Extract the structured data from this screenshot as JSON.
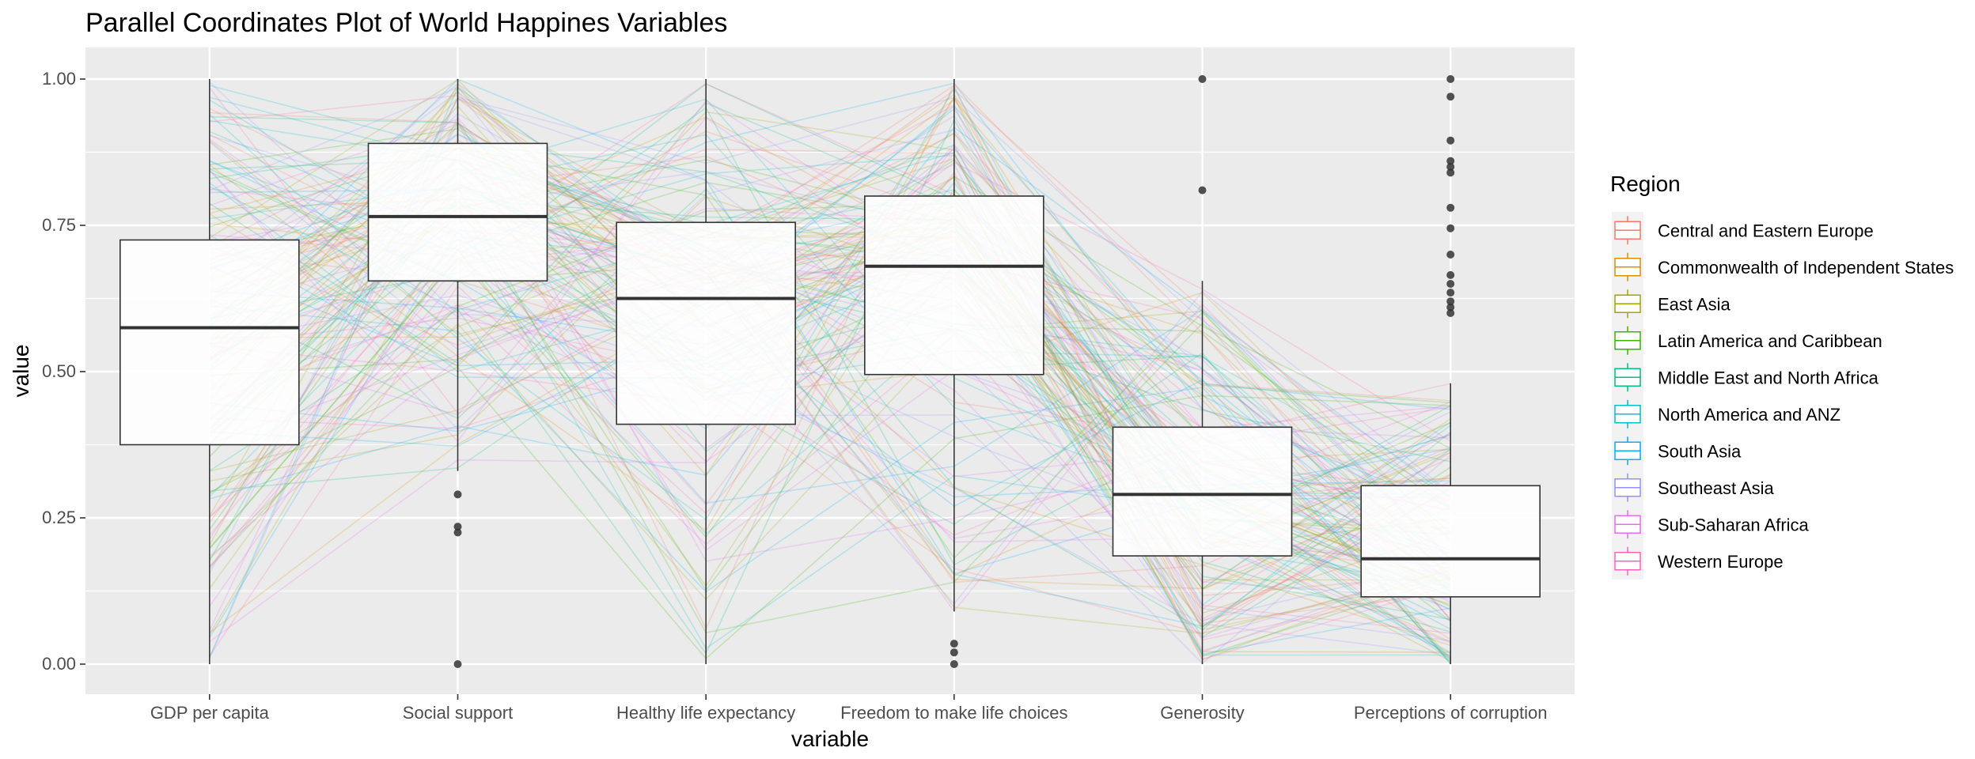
{
  "chart_data": {
    "type": "boxplot-parallel-coordinates",
    "title": "Parallel Coordinates Plot of World Happines Variables",
    "xlabel": "variable",
    "ylabel": "value",
    "ylim": [
      0,
      1
    ],
    "y_ticks": [
      "0.00",
      "0.25",
      "0.50",
      "0.75",
      "1.00"
    ],
    "y_tick_values": [
      0,
      0.25,
      0.5,
      0.75,
      1
    ],
    "grid": true,
    "legend_position": "right",
    "legend_title": "Region",
    "categories": [
      "GDP per capita",
      "Social support",
      "Healthy life expectancy",
      "Freedom to make life choices",
      "Generosity",
      "Perceptions of corruption"
    ],
    "boxes": [
      {
        "variable": "GDP per capita",
        "min": 0.0,
        "q1": 0.375,
        "median": 0.575,
        "q3": 0.725,
        "max": 1.0,
        "outliers": []
      },
      {
        "variable": "Social support",
        "min": 0.33,
        "q1": 0.655,
        "median": 0.765,
        "q3": 0.89,
        "max": 1.0,
        "outliers": [
          0.29,
          0.235,
          0.225,
          0.0
        ]
      },
      {
        "variable": "Healthy life expectancy",
        "min": 0.0,
        "q1": 0.41,
        "median": 0.625,
        "q3": 0.755,
        "max": 1.0,
        "outliers": []
      },
      {
        "variable": "Freedom to make life choices",
        "min": 0.09,
        "q1": 0.495,
        "median": 0.68,
        "q3": 0.8,
        "max": 1.0,
        "outliers": [
          0.035,
          0.02,
          0.0
        ]
      },
      {
        "variable": "Generosity",
        "min": 0.0,
        "q1": 0.185,
        "median": 0.29,
        "q3": 0.405,
        "max": 0.655,
        "outliers": [
          1.0,
          0.81
        ]
      },
      {
        "variable": "Perceptions of corruption",
        "min": 0.0,
        "q1": 0.115,
        "median": 0.18,
        "q3": 0.305,
        "max": 0.48,
        "outliers": [
          1.0,
          0.97,
          0.895,
          0.86,
          0.85,
          0.84,
          0.78,
          0.745,
          0.7,
          0.665,
          0.65,
          0.635,
          0.62,
          0.61,
          0.6
        ]
      }
    ],
    "series": [
      {
        "name": "Central and Eastern Europe",
        "color": "#F8766D"
      },
      {
        "name": "Commonwealth of Independent States",
        "color": "#D89000"
      },
      {
        "name": "East Asia",
        "color": "#A3A500"
      },
      {
        "name": "Latin America and Caribbean",
        "color": "#39B600"
      },
      {
        "name": "Middle East and North Africa",
        "color": "#00BF7D"
      },
      {
        "name": "North America and ANZ",
        "color": "#00BFC4"
      },
      {
        "name": "South Asia",
        "color": "#00B0F6"
      },
      {
        "name": "Southeast Asia",
        "color": "#9590FF"
      },
      {
        "name": "Sub-Saharan Africa",
        "color": "#E76BF3"
      },
      {
        "name": "Western Europe",
        "color": "#FF62BC"
      }
    ]
  }
}
